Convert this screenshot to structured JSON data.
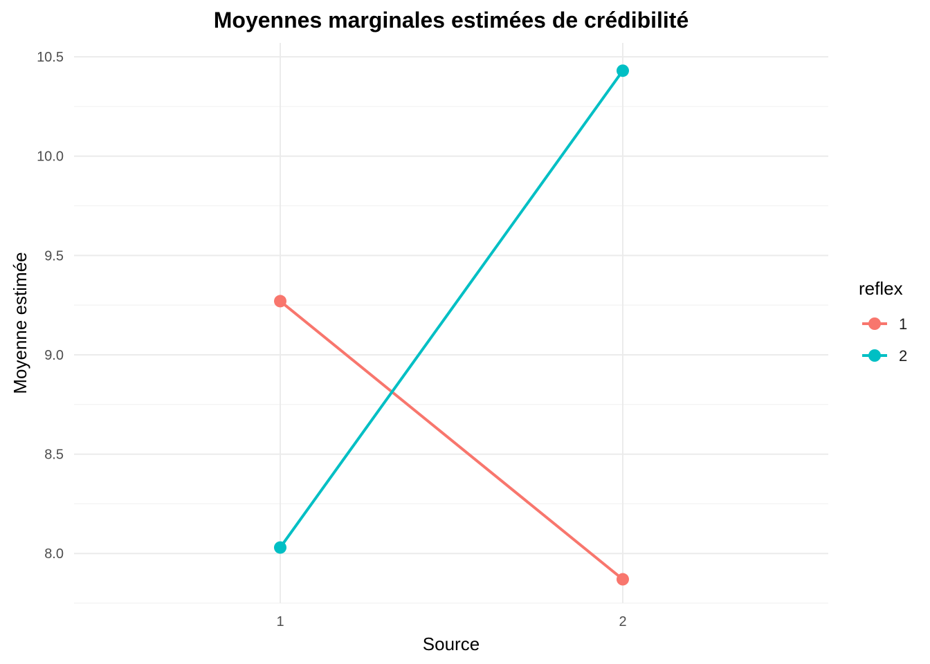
{
  "chart_data": {
    "type": "line",
    "title": "Moyennes marginales estimées de crédibilité",
    "xlabel": "Source",
    "ylabel": "Moyenne estimée",
    "categories": [
      "1",
      "2"
    ],
    "y_ticks": [
      "8.0",
      "8.5",
      "9.0",
      "9.5",
      "10.0",
      "10.5"
    ],
    "ylim": [
      7.75,
      10.57
    ],
    "grid": true,
    "legend": {
      "title": "reflex",
      "placement": "right"
    },
    "series": [
      {
        "name": "1",
        "values": [
          9.27,
          7.87
        ],
        "color": "#f8766d"
      },
      {
        "name": "2",
        "values": [
          8.03,
          10.43
        ],
        "color": "#00bfc4"
      }
    ]
  }
}
